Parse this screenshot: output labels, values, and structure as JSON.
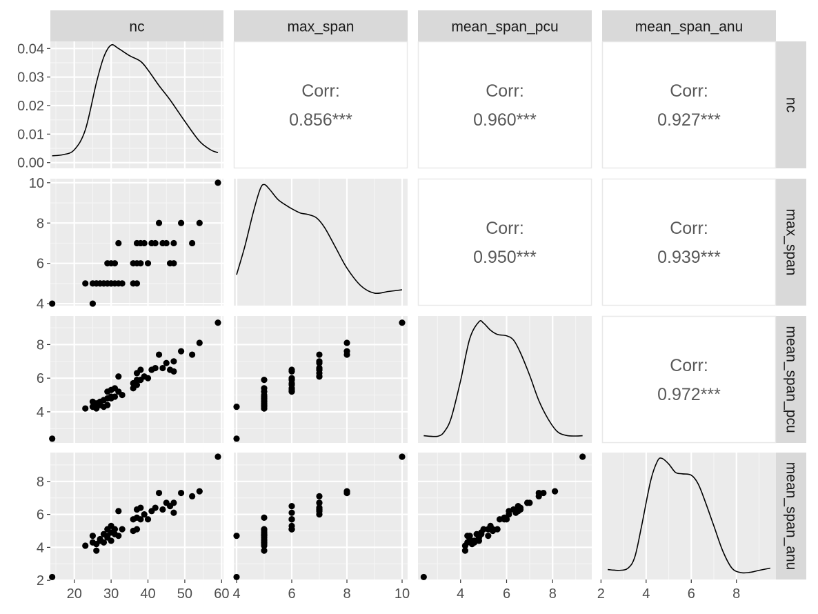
{
  "chart_data": {
    "type": "scatter",
    "variables": [
      "nc",
      "max_span",
      "mean_span_pcu",
      "mean_span_anu"
    ],
    "correlation_label": "Corr:",
    "correlations": [
      {
        "row": "nc",
        "col": "max_span",
        "value": "0.856***"
      },
      {
        "row": "nc",
        "col": "mean_span_pcu",
        "value": "0.960***"
      },
      {
        "row": "nc",
        "col": "mean_span_anu",
        "value": "0.927***"
      },
      {
        "row": "max_span",
        "col": "mean_span_pcu",
        "value": "0.950***"
      },
      {
        "row": "max_span",
        "col": "mean_span_anu",
        "value": "0.939***"
      },
      {
        "row": "mean_span_pcu",
        "col": "mean_span_anu",
        "value": "0.972***"
      }
    ],
    "axes": {
      "nc": {
        "lim": [
          13.5,
          60.5
        ],
        "ticks": [
          20,
          30,
          40,
          50,
          60
        ]
      },
      "max_span": {
        "lim": [
          3.9,
          10.2
        ],
        "ticks": [
          4,
          6,
          8,
          10
        ]
      },
      "mean_span_pcu": {
        "lim": [
          2.15,
          9.7
        ],
        "ticks": [
          4,
          6,
          8
        ]
      },
      "mean_span_anu": {
        "lim": [
          2.05,
          9.75
        ],
        "ticks": [
          2,
          4,
          6,
          8
        ]
      },
      "density_nc": {
        "lim": [
          -0.002,
          0.0425
        ],
        "ticks": [
          0.0,
          0.01,
          0.02,
          0.03,
          0.04
        ],
        "tick_labels": [
          "0.00",
          "0.01",
          "0.02",
          "0.03",
          "0.04"
        ]
      }
    },
    "observations": {
      "nc": [
        14,
        23,
        25,
        25,
        26,
        26,
        27,
        27,
        28,
        28,
        29,
        29,
        29,
        30,
        30,
        30,
        31,
        31,
        32,
        32,
        33,
        36,
        36,
        37,
        37,
        37,
        38,
        38,
        39,
        40,
        41,
        42,
        43,
        44,
        45,
        46,
        47,
        47,
        49,
        52,
        54,
        59
      ],
      "max_span": [
        4,
        5,
        4,
        5,
        5,
        5,
        5,
        5,
        5,
        5,
        6,
        5,
        5,
        6,
        5,
        5,
        6,
        5,
        7,
        5,
        5,
        5,
        6,
        5,
        7,
        6,
        7,
        6,
        7,
        6,
        7,
        7,
        8,
        7,
        7,
        6,
        6,
        7,
        8,
        7,
        8,
        10
      ],
      "mean_span_pcu": [
        2.4,
        4.2,
        4.3,
        4.6,
        4.2,
        4.5,
        4.6,
        4.4,
        4.7,
        4.3,
        5.2,
        4.8,
        4.4,
        5.3,
        4.9,
        4.8,
        5.4,
        4.9,
        6.1,
        5.2,
        5.0,
        5.4,
        5.7,
        5.9,
        6.3,
        5.6,
        6.5,
        5.9,
        6.1,
        6.0,
        6.5,
        6.6,
        7.4,
        6.6,
        6.9,
        6.5,
        6.4,
        7.0,
        7.6,
        7.4,
        8.1,
        9.3
      ],
      "mean_span_anu": [
        2.2,
        4.1,
        4.7,
        4.3,
        3.8,
        4.2,
        4.4,
        4.5,
        4.8,
        4.3,
        5.1,
        4.6,
        4.7,
        5.3,
        4.9,
        4.4,
        5.1,
        4.8,
        6.2,
        4.7,
        5.1,
        5.0,
        5.7,
        5.8,
        6.3,
        5.1,
        6.4,
        5.7,
        6.0,
        5.7,
        6.2,
        6.4,
        7.3,
        6.3,
        6.7,
        6.5,
        6.1,
        6.7,
        7.3,
        7.1,
        7.4,
        9.5
      ]
    },
    "densities": {
      "nc": {
        "x": [
          14,
          17,
          20,
          23,
          26,
          28,
          30,
          32,
          35,
          38,
          40,
          43,
          46,
          50,
          54,
          57,
          59
        ],
        "y": [
          0.0024,
          0.0028,
          0.0045,
          0.0115,
          0.028,
          0.037,
          0.0412,
          0.04,
          0.0375,
          0.0355,
          0.0325,
          0.027,
          0.022,
          0.0145,
          0.0075,
          0.0045,
          0.0035
        ]
      },
      "max_span": {
        "x": [
          4,
          4.3,
          4.6,
          4.85,
          5,
          5.2,
          5.5,
          5.8,
          6,
          6.3,
          6.6,
          6.9,
          7.2,
          7.6,
          8,
          8.5,
          9,
          9.5,
          10
        ],
        "y": [
          0.15,
          0.32,
          0.52,
          0.66,
          0.69,
          0.66,
          0.6,
          0.565,
          0.545,
          0.52,
          0.51,
          0.49,
          0.43,
          0.31,
          0.19,
          0.085,
          0.04,
          0.05,
          0.06
        ]
      },
      "mean_span_pcu": {
        "x": [
          2.4,
          3.0,
          3.3,
          3.6,
          4.0,
          4.4,
          4.8,
          5.0,
          5.3,
          5.6,
          6.0,
          6.3,
          6.6,
          7.0,
          7.4,
          7.8,
          8.2,
          8.6,
          9.0,
          9.3
        ],
        "y": [
          0.005,
          0.003,
          0.02,
          0.07,
          0.2,
          0.35,
          0.41,
          0.405,
          0.38,
          0.365,
          0.36,
          0.345,
          0.3,
          0.22,
          0.13,
          0.065,
          0.02,
          0.006,
          0.004,
          0.005
        ]
      },
      "mean_span_anu": {
        "x": [
          2.3,
          2.8,
          3.2,
          3.5,
          3.8,
          4.2,
          4.5,
          4.7,
          5.0,
          5.3,
          5.6,
          6.0,
          6.3,
          6.6,
          7.0,
          7.4,
          7.8,
          8.2,
          8.6,
          9.0,
          9.5
        ],
        "y": [
          0.015,
          0.012,
          0.02,
          0.06,
          0.17,
          0.33,
          0.4,
          0.41,
          0.39,
          0.36,
          0.355,
          0.35,
          0.32,
          0.26,
          0.17,
          0.08,
          0.02,
          0.004,
          0.005,
          0.012,
          0.02
        ]
      }
    },
    "grid": true,
    "colors": {
      "panel": "#EBEBEB",
      "strip": "#D9D9D9",
      "grid_major": "#FFFFFF",
      "grid_minor": "#F5F5F5",
      "points": "#000000",
      "line": "#000000",
      "corr_text": "#595959",
      "tick_text": "#4D4D4D",
      "strip_text": "#1A1A1A",
      "corr_border": "#E8E8E8"
    }
  }
}
